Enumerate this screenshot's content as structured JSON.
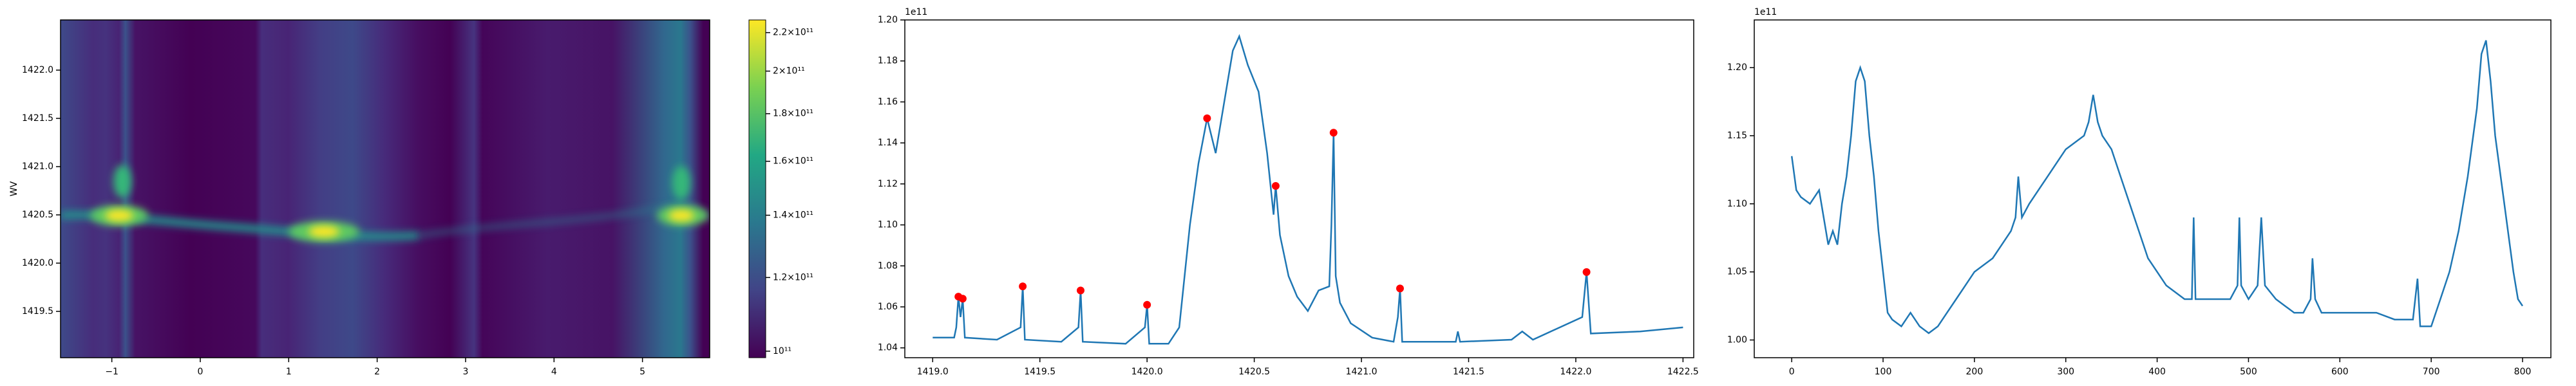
{
  "chart_data": [
    {
      "type": "heatmap",
      "ylabel": "WV",
      "xlim": [
        -1.58,
        5.76
      ],
      "xticks": [
        {
          "value": -1,
          "label": "−1"
        },
        0,
        1,
        2,
        3,
        4,
        5
      ],
      "ylim": [
        1419.02,
        1422.52
      ],
      "yticks": [
        1419.5,
        {
          "value": 1420,
          "label": "1420.0"
        },
        1420.5,
        {
          "value": 1421,
          "label": "1421.0"
        },
        1421.5,
        {
          "value": 1422,
          "label": "1422.0"
        }
      ],
      "colorbar": {
        "log": true,
        "lim": [
          98400000000,
          227000000000
        ],
        "ticks": [
          {
            "value": 100000000000,
            "label": "10¹¹"
          },
          {
            "value": 120000000000,
            "label": "1.2×10¹¹"
          },
          {
            "value": 140000000000,
            "label": "1.4×10¹¹"
          },
          {
            "value": 160000000000,
            "label": "1.6×10¹¹"
          },
          {
            "value": 180000000000,
            "label": "1.8×10¹¹"
          },
          {
            "value": 200000000000,
            "label": "2×10¹¹"
          },
          {
            "value": 220000000000,
            "label": "2.2×10¹¹"
          }
        ]
      }
    },
    {
      "type": "line",
      "y_offset_label": "1e11",
      "x": [
        1419.0,
        1419.1,
        1419.11,
        1419.12,
        1419.13,
        1419.14,
        1419.15,
        1419.3,
        1419.41,
        1419.42,
        1419.43,
        1419.6,
        1419.68,
        1419.69,
        1419.7,
        1419.9,
        1419.99,
        1420.0,
        1420.01,
        1420.1,
        1420.15,
        1420.2,
        1420.24,
        1420.28,
        1420.32,
        1420.36,
        1420.4,
        1420.43,
        1420.47,
        1420.52,
        1420.56,
        1420.59,
        1420.6,
        1420.62,
        1420.66,
        1420.7,
        1420.75,
        1420.8,
        1420.85,
        1420.86,
        1420.87,
        1420.88,
        1420.9,
        1420.95,
        1421.05,
        1421.15,
        1421.17,
        1421.18,
        1421.19,
        1421.3,
        1421.44,
        1421.45,
        1421.46,
        1421.7,
        1421.75,
        1421.8,
        1422.03,
        1422.05,
        1422.07,
        1422.3,
        1422.5
      ],
      "series": [
        {
          "color": "#1f77b4",
          "values": [
            1.045,
            1.045,
            1.05,
            1.065,
            1.055,
            1.064,
            1.045,
            1.044,
            1.05,
            1.07,
            1.044,
            1.043,
            1.05,
            1.068,
            1.043,
            1.042,
            1.05,
            1.061,
            1.042,
            1.042,
            1.05,
            1.1,
            1.13,
            1.152,
            1.135,
            1.16,
            1.185,
            1.192,
            1.178,
            1.165,
            1.135,
            1.105,
            1.119,
            1.095,
            1.075,
            1.065,
            1.058,
            1.068,
            1.07,
            1.1,
            1.145,
            1.075,
            1.062,
            1.052,
            1.045,
            1.043,
            1.055,
            1.069,
            1.043,
            1.043,
            1.043,
            1.048,
            1.043,
            1.044,
            1.048,
            1.044,
            1.055,
            1.077,
            1.047,
            1.048,
            1.05
          ]
        }
      ],
      "peaks": {
        "color": "#ff0000",
        "x": [
          1419.12,
          1419.14,
          1419.42,
          1419.69,
          1420.0,
          1420.28,
          1420.6,
          1420.87,
          1421.18,
          1422.05
        ],
        "values": [
          1.065,
          1.064,
          1.07,
          1.068,
          1.061,
          1.152,
          1.119,
          1.145,
          1.069,
          1.077
        ]
      },
      "xlim": [
        1418.87,
        1422.55
      ],
      "xticks": [
        {
          "value": 1419,
          "label": "1419.0"
        },
        1419.5,
        {
          "value": 1420,
          "label": "1420.0"
        },
        1420.5,
        {
          "value": 1421,
          "label": "1421.0"
        },
        1421.5,
        {
          "value": 1422,
          "label": "1422.0"
        },
        1422.5
      ],
      "ylim": [
        1.0352,
        1.2
      ],
      "yticks": [
        1.04,
        1.06,
        1.08,
        {
          "value": 1.1,
          "label": "1.10"
        },
        1.12,
        1.14,
        1.16,
        1.18,
        {
          "value": 1.2,
          "label": "1.20"
        }
      ]
    },
    {
      "type": "line",
      "y_offset_label": "1e11",
      "x": [
        0,
        5,
        10,
        20,
        30,
        35,
        40,
        45,
        50,
        55,
        60,
        65,
        70,
        75,
        80,
        85,
        90,
        95,
        100,
        105,
        110,
        120,
        130,
        140,
        150,
        160,
        170,
        180,
        190,
        200,
        210,
        220,
        230,
        240,
        245,
        248,
        252,
        260,
        270,
        280,
        290,
        300,
        310,
        320,
        325,
        330,
        335,
        340,
        350,
        360,
        370,
        380,
        390,
        400,
        410,
        420,
        430,
        438,
        440,
        442,
        450,
        460,
        470,
        480,
        488,
        490,
        492,
        500,
        510,
        514,
        518,
        530,
        540,
        550,
        560,
        568,
        570,
        573,
        580,
        600,
        620,
        640,
        660,
        680,
        685,
        688,
        700,
        710,
        720,
        730,
        740,
        750,
        755,
        760,
        765,
        770,
        780,
        790,
        795,
        800
      ],
      "series": [
        {
          "color": "#1f77b4",
          "values": [
            1.135,
            1.11,
            1.105,
            1.1,
            1.11,
            1.09,
            1.07,
            1.08,
            1.07,
            1.1,
            1.12,
            1.15,
            1.19,
            1.2,
            1.19,
            1.15,
            1.12,
            1.08,
            1.05,
            1.02,
            1.015,
            1.01,
            1.02,
            1.01,
            1.005,
            1.01,
            1.02,
            1.03,
            1.04,
            1.05,
            1.055,
            1.06,
            1.07,
            1.08,
            1.09,
            1.12,
            1.09,
            1.1,
            1.11,
            1.12,
            1.13,
            1.14,
            1.145,
            1.15,
            1.16,
            1.18,
            1.16,
            1.15,
            1.14,
            1.12,
            1.1,
            1.08,
            1.06,
            1.05,
            1.04,
            1.035,
            1.03,
            1.03,
            1.09,
            1.03,
            1.03,
            1.03,
            1.03,
            1.03,
            1.04,
            1.09,
            1.04,
            1.03,
            1.04,
            1.09,
            1.04,
            1.03,
            1.025,
            1.02,
            1.02,
            1.03,
            1.06,
            1.03,
            1.02,
            1.02,
            1.02,
            1.02,
            1.015,
            1.015,
            1.045,
            1.01,
            1.01,
            1.03,
            1.05,
            1.08,
            1.12,
            1.17,
            1.21,
            1.22,
            1.19,
            1.15,
            1.1,
            1.05,
            1.03,
            1.025
          ]
        }
      ],
      "xlim": [
        -41,
        831
      ],
      "xticks": [
        0,
        100,
        200,
        300,
        400,
        500,
        600,
        700,
        800
      ],
      "ylim": [
        0.987,
        1.235
      ],
      "yticks": [
        {
          "value": 1,
          "label": "1.00"
        },
        1.05,
        {
          "value": 1.1,
          "label": "1.10"
        },
        1.15,
        {
          "value": 1.2,
          "label": "1.20"
        }
      ]
    }
  ]
}
